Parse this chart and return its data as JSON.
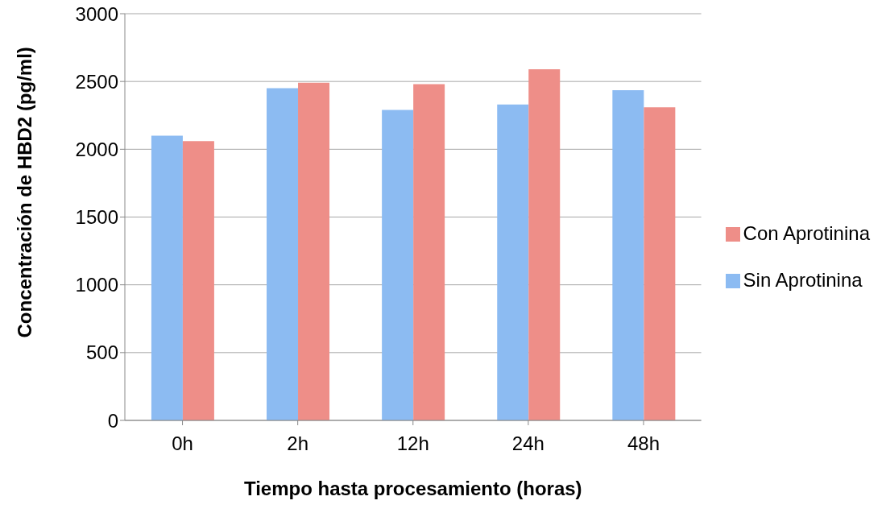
{
  "chart_data": {
    "type": "bar",
    "xlabel": "Tiempo hasta procesamiento (horas)",
    "ylabel": "Concentración de HBD2 (pg/ml)",
    "categories": [
      "0h",
      "2h",
      "12h",
      "24h",
      "48h"
    ],
    "series": [
      {
        "name": "Sin Aprotinina",
        "color": "#8cbbf2",
        "values": [
          2100,
          2450,
          2290,
          2330,
          2435
        ]
      },
      {
        "name": "Con Aprotinina",
        "color": "#ee8e88",
        "values": [
          2060,
          2490,
          2480,
          2590,
          2310
        ]
      }
    ],
    "ylim": [
      0,
      3000
    ],
    "yticks": [
      0,
      500,
      1000,
      1500,
      2000,
      2500,
      3000
    ],
    "grid": "y",
    "legend": "right"
  }
}
